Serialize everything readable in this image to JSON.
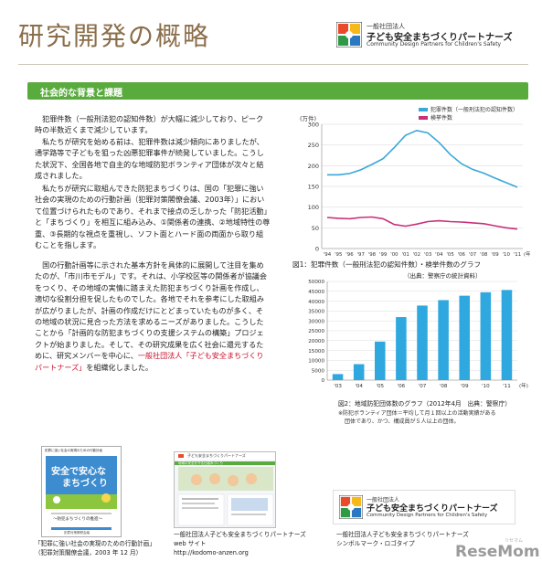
{
  "header": {
    "title": "研究開発の概略",
    "logo": {
      "line1": "一般社団法人",
      "line2": "子ども安全まちづくりパートナーズ",
      "line3": "Community Design Partners for Children's Safety"
    }
  },
  "section": {
    "title": "社会的な背景と課題"
  },
  "body": {
    "para1": "犯罪件数（一般刑法犯の認知件数）が大幅に減少しており、ピーク時の半数近くまで減少しています。",
    "para2": "私たちが研究を始める前は、犯罪件数は減少傾向にありましたが、通学路等で子どもを狙った凶悪犯罪事件が続発していました。こうした状況下、全国各地で自主的な地域防犯ボランティア団体が次々と結成されました。",
    "para3": "私たちが研究に取組んできた防犯まちづくりは、国の「犯罪に強い社会の実現のための行動計画（犯罪対策閣僚会議、2003年）」において位置づけられたものであり、それまで接点の乏しかった「防犯活動」と「まちづくり」を相互に組み込み、①関係者の連携、②地域特性の尊重、③長期的な視点を重視し、ソフト面とハード面の両面から取り組むことを指します。",
    "para4a": "国の行動計画等に示された基本方針を具体的に展開して注目を集めたのが、「市川市モデル」です。それは、小学校区等の関係者が協議会をつくり、その地域の実情に踏まえた防犯まちづくり計画を作成し、適切な役割分担を促したものでした。各地でそれを参考にした取組みが広がりましたが、計画の作成だけにとどまっていたものが多く、その地域の状況に見合った方法を求めるニーズがありました。こうしたことから「計画的な防犯まちづくりの支援システムの構築」プロジェクトが始まりました。そして、その研究成果を広く社会に還元するために、研究メンバーを中心に、",
    "para4link": "一般社団法人「子ども安全まちづくりパートナーズ」",
    "para4b": "を組織化しました。"
  },
  "chart_data": [
    {
      "type": "line",
      "ylabel": "(万件)",
      "ylim": [
        0,
        300
      ],
      "yticks": [
        0,
        50,
        100,
        150,
        200,
        250,
        300
      ],
      "x": [
        "'94",
        "'95",
        "'96",
        "'97",
        "'98",
        "'99",
        "'00",
        "'01",
        "'02",
        "'03",
        "'04",
        "'05",
        "'06",
        "'07",
        "'08",
        "'09",
        "'10",
        "'11"
      ],
      "xunit": "(年)",
      "series": [
        {
          "name": "犯罪件数（一般刑法犯の認知件数）",
          "color": "#3aa7d8",
          "values": [
            178,
            178,
            181,
            190,
            203,
            217,
            244,
            273,
            285,
            279,
            256,
            227,
            205,
            191,
            182,
            170,
            159,
            148
          ]
        },
        {
          "name": "検挙件数",
          "color": "#c8307a",
          "values": [
            75,
            73,
            72,
            75,
            76,
            72,
            58,
            54,
            59,
            65,
            67,
            65,
            64,
            62,
            60,
            55,
            50,
            47
          ]
        }
      ],
      "caption": "図1：犯罪件数（一般刑法犯の認知件数）・検挙件数のグラフ",
      "source": "（出典：警察庁の統計資料）"
    },
    {
      "type": "bar",
      "ylim": [
        0,
        50000
      ],
      "yticks": [
        0,
        5000,
        10000,
        15000,
        20000,
        25000,
        30000,
        35000,
        40000,
        45000,
        50000
      ],
      "categories": [
        "'03",
        "'04",
        "'05",
        "'06",
        "'07",
        "'08",
        "'09",
        "'10",
        "'11"
      ],
      "xunit": "(年)",
      "color": "#2fa8df",
      "values": [
        3056,
        8079,
        19515,
        31931,
        37774,
        40538,
        42762,
        44508,
        45673
      ],
      "caption": "図2：地域防犯団体数のグラフ（2012年4月　出典：警察庁）",
      "note1": "※防犯ボランティア団体＝平均して月１回以上の活動実績がある",
      "note2": "団体であり、かつ、構成員が５人以上の団体。"
    }
  ],
  "captions": {
    "book1": "「犯罪に強い社会の実現のための行動計画」",
    "book2": "（犯罪対策閣僚会議，2003 年 12 月）",
    "web1": "一般社団法人子ども安全まちづくりパートナーズ",
    "web2": "web サイト",
    "web3": "http://kodomo-anzen.org",
    "symbol1": "一般社団法人子ども安全まちづくりパートナーズ",
    "symbol2": "シンボルマーク・ロゴタイプ"
  },
  "thumbnails": {
    "book": {
      "top": "犯罪に強い社会の実現のための行動計画",
      "title1": "安全で安心な",
      "title2": "まちづくり",
      "subtitle": "～防犯まちづくりの推進～",
      "footer": "犯罪対策閣僚会議"
    },
    "web": {
      "heading": "子ども安全まちづくりパートナーズ",
      "tagline": "地域の安全を守る仕組みづくり"
    }
  },
  "watermark": {
    "text": "ReseMom",
    "sub": "リセマム"
  }
}
